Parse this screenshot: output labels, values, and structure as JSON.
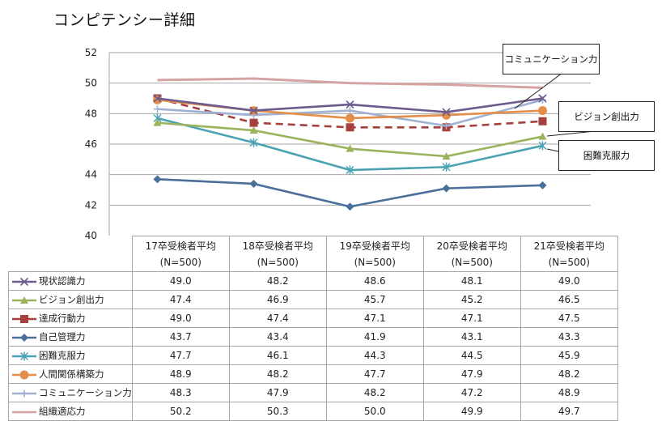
{
  "title": "コンピテンシー詳細",
  "chart_data": {
    "type": "line",
    "title": "コンピテンシー詳細",
    "xlabel": "",
    "ylabel": "",
    "ylim": [
      40,
      52
    ],
    "yticks": [
      40,
      42,
      44,
      46,
      48,
      50,
      52
    ],
    "grid": true,
    "legend_placement": "data-table-left",
    "categories": [
      {
        "line1": "17卒受検者平均",
        "line2": "(N=500)"
      },
      {
        "line1": "18卒受検者平均",
        "line2": "(N=500)"
      },
      {
        "line1": "19卒受検者平均",
        "line2": "(N=500)"
      },
      {
        "line1": "20卒受検者平均",
        "line2": "(N=500)"
      },
      {
        "line1": "21卒受検者平均",
        "line2": "(N=500)"
      }
    ],
    "series": [
      {
        "name": "現状認識力",
        "color": "#6b5b8e",
        "marker": "x",
        "dash": false,
        "values": [
          49.0,
          48.2,
          48.6,
          48.1,
          49.0
        ],
        "display": [
          "49.0",
          "48.2",
          "48.6",
          "48.1",
          "49.0"
        ]
      },
      {
        "name": "ビジョン創出力",
        "color": "#9bb35c",
        "marker": "triangle",
        "dash": false,
        "values": [
          47.4,
          46.9,
          45.7,
          45.2,
          46.5
        ],
        "display": [
          "47.4",
          "46.9",
          "45.7",
          "45.2",
          "46.5"
        ]
      },
      {
        "name": "達成行動力",
        "color": "#a5403e",
        "marker": "square",
        "dash": true,
        "values": [
          49.0,
          47.4,
          47.1,
          47.1,
          47.5
        ],
        "display": [
          "49.0",
          "47.4",
          "47.1",
          "47.1",
          "47.5"
        ]
      },
      {
        "name": "自己管理力",
        "color": "#4a6f9a",
        "marker": "diamond",
        "dash": false,
        "values": [
          43.7,
          43.4,
          41.9,
          43.1,
          43.3
        ],
        "display": [
          "43.7",
          "43.4",
          "41.9",
          "43.1",
          "43.3"
        ]
      },
      {
        "name": "困難克服力",
        "color": "#4ba2b3",
        "marker": "asterisk",
        "dash": false,
        "values": [
          47.7,
          46.1,
          44.3,
          44.5,
          45.9
        ],
        "display": [
          "47.7",
          "46.1",
          "44.3",
          "44.5",
          "45.9"
        ]
      },
      {
        "name": "人間関係構築力",
        "color": "#e58e4a",
        "marker": "circle",
        "dash": false,
        "values": [
          48.9,
          48.2,
          47.7,
          47.9,
          48.2
        ],
        "display": [
          "48.9",
          "48.2",
          "47.7",
          "47.9",
          "48.2"
        ]
      },
      {
        "name": "コミュニケーション力",
        "color": "#9fb2d4",
        "marker": "plus",
        "dash": false,
        "values": [
          48.3,
          47.9,
          48.2,
          47.2,
          48.9
        ],
        "display": [
          "48.3",
          "47.9",
          "48.2",
          "47.2",
          "48.9"
        ]
      },
      {
        "name": "組織適応力",
        "color": "#d5a3a2",
        "marker": "none",
        "dash": false,
        "values": [
          50.2,
          50.3,
          50.0,
          49.9,
          49.7
        ],
        "display": [
          "50.2",
          "50.3",
          "50.0",
          "49.9",
          "49.7"
        ]
      }
    ],
    "annotations": [
      {
        "text": "コミュニケーション力",
        "series": "コミュニケーション力",
        "category_index": 4
      },
      {
        "text": "ビジョン創出力",
        "series": "ビジョン創出力",
        "category_index": 4
      },
      {
        "text": "困難克服力",
        "series": "困難克服力",
        "category_index": 4
      }
    ]
  }
}
